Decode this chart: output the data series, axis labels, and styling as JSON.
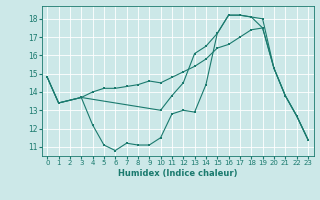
{
  "title": "",
  "xlabel": "Humidex (Indice chaleur)",
  "bg_color": "#cce8e8",
  "grid_color": "#ffffff",
  "line_color": "#1a7a6e",
  "xlim": [
    -0.5,
    23.5
  ],
  "ylim": [
    10.5,
    18.7
  ],
  "xticks": [
    0,
    1,
    2,
    3,
    4,
    5,
    6,
    7,
    8,
    9,
    10,
    11,
    12,
    13,
    14,
    15,
    16,
    17,
    18,
    19,
    20,
    21,
    22,
    23
  ],
  "yticks": [
    11,
    12,
    13,
    14,
    15,
    16,
    17,
    18
  ],
  "line1_x": [
    0,
    1,
    3,
    4,
    5,
    6,
    7,
    8,
    9,
    10,
    11,
    12,
    13,
    14,
    15,
    16,
    17,
    18,
    19,
    20,
    21,
    22,
    23
  ],
  "line1_y": [
    14.8,
    13.4,
    13.7,
    12.2,
    11.1,
    10.8,
    11.2,
    11.1,
    11.1,
    11.5,
    12.8,
    13.0,
    12.9,
    14.4,
    17.2,
    18.2,
    18.2,
    18.1,
    18.0,
    15.3,
    13.8,
    12.7,
    11.4
  ],
  "line2_x": [
    0,
    1,
    3,
    4,
    5,
    6,
    7,
    8,
    9,
    10,
    11,
    12,
    13,
    14,
    15,
    16,
    17,
    18,
    19,
    20,
    21,
    22,
    23
  ],
  "line2_y": [
    14.8,
    13.4,
    13.7,
    14.0,
    14.2,
    14.2,
    14.3,
    14.4,
    14.6,
    14.5,
    14.8,
    15.1,
    15.4,
    15.8,
    16.4,
    16.6,
    17.0,
    17.4,
    17.5,
    15.3,
    13.8,
    12.7,
    11.4
  ],
  "line3_x": [
    0,
    1,
    3,
    10,
    11,
    12,
    13,
    14,
    15,
    16,
    17,
    18,
    19,
    20,
    21,
    22,
    23
  ],
  "line3_y": [
    14.8,
    13.4,
    13.7,
    13.0,
    13.8,
    14.5,
    16.1,
    16.5,
    17.2,
    18.2,
    18.2,
    18.1,
    17.5,
    15.3,
    13.8,
    12.7,
    11.4
  ]
}
